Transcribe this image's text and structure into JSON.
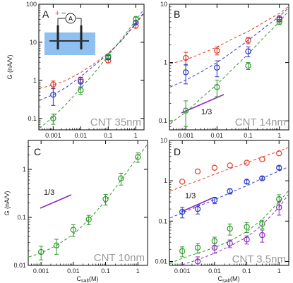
{
  "colors": {
    "red": "#e23a2a",
    "blue": "#2a37c8",
    "green": "#2e9a2a",
    "purple": "#8a32b8",
    "slope_line": "#8a2bbf",
    "schematic_water": "#8fc0f0"
  },
  "chart_data": [
    {
      "type": "scatter",
      "panel_label": "A",
      "annotation": "CNT 35nm",
      "ylabel": "G (nA/V)",
      "xlabel": "",
      "x_scale": "log",
      "y_scale": "log",
      "xlim": [
        0.0003,
        2
      ],
      "ylim": [
        0.05,
        100
      ],
      "yticks": [
        "0.1",
        "1",
        "10",
        "100"
      ],
      "xticks": [
        "0.001",
        "0.01",
        "0.1",
        "1"
      ],
      "series": [
        {
          "color": "red",
          "marker": "circle",
          "x": [
            0.001,
            0.01,
            0.1,
            1
          ],
          "y": [
            0.78,
            1.02,
            3.3,
            27
          ],
          "err": [
            0.18,
            0.2,
            0.4,
            3
          ],
          "fit_x": [
            0.0003,
            0.001,
            0.003,
            0.01,
            0.03,
            0.1,
            0.3,
            1,
            2
          ],
          "fit_y": [
            0.62,
            0.75,
            1.0,
            1.6,
            2.7,
            5.2,
            11,
            30,
            55
          ]
        },
        {
          "color": "blue",
          "marker": "circle",
          "x": [
            0.001,
            0.01,
            0.1,
            1
          ],
          "y": [
            0.42,
            0.92,
            4.0,
            33
          ],
          "err": [
            0.2,
            0.25,
            0.5,
            3
          ],
          "fit_x": [
            0.0003,
            0.001,
            0.003,
            0.01,
            0.03,
            0.1,
            0.3,
            1,
            2
          ],
          "fit_y": [
            0.3,
            0.42,
            0.66,
            1.25,
            2.4,
            5.0,
            11,
            32,
            58
          ]
        },
        {
          "color": "green",
          "marker": "circle",
          "x": [
            0.001,
            0.01,
            0.1,
            1
          ],
          "y": [
            0.1,
            0.55,
            4.3,
            41
          ],
          "err": [
            0.03,
            0.12,
            0.5,
            4
          ],
          "fit_x": [
            0.0003,
            0.001,
            0.003,
            0.01,
            0.03,
            0.1,
            0.3,
            1,
            2
          ],
          "fit_y": [
            0.055,
            0.11,
            0.24,
            0.62,
            1.5,
            4.5,
            12,
            38,
            70
          ]
        }
      ]
    },
    {
      "type": "scatter",
      "panel_label": "B",
      "annotation": "CNT 14nm",
      "slope_label": "1/3",
      "xlabel": "",
      "ylabel": "",
      "x_scale": "log",
      "y_scale": "log",
      "xlim": [
        0.0003,
        2
      ],
      "ylim": [
        0.07,
        10
      ],
      "yticks": [
        "0.1",
        "1",
        "10"
      ],
      "xticks": [
        "0.001",
        "0.01",
        "0.1",
        "1"
      ],
      "series": [
        {
          "color": "red",
          "marker": "circle",
          "x": [
            0.001,
            0.01,
            0.1,
            1
          ],
          "y": [
            1.2,
            1.6,
            2.4,
            5.8
          ],
          "err": [
            0.3,
            0.25,
            0.3,
            0.5
          ],
          "fit_x": [
            0.0003,
            0.001,
            0.003,
            0.01,
            0.03,
            0.1,
            0.3,
            1,
            2
          ],
          "fit_y": [
            0.95,
            1.12,
            1.4,
            1.85,
            2.5,
            3.4,
            4.8,
            7.0,
            9.0
          ]
        },
        {
          "color": "blue",
          "marker": "circle",
          "x": [
            0.001,
            0.01,
            0.1,
            1
          ],
          "y": [
            0.68,
            0.82,
            1.55,
            5.5
          ],
          "err": [
            0.25,
            0.25,
            0.3,
            0.5
          ],
          "fit_x": [
            0.0003,
            0.001,
            0.003,
            0.01,
            0.03,
            0.1,
            0.3,
            1,
            2
          ],
          "fit_y": [
            0.38,
            0.5,
            0.68,
            1.0,
            1.5,
            2.4,
            3.8,
            6.2,
            8.5
          ]
        },
        {
          "color": "green",
          "marker": "circle",
          "x": [
            0.001,
            0.01,
            0.1,
            1
          ],
          "y": [
            0.15,
            0.38,
            0.88,
            5.0
          ],
          "err": [
            0.07,
            0.12,
            0.12,
            0.5
          ],
          "fit_x": [
            0.0003,
            0.001,
            0.003,
            0.01,
            0.03,
            0.1,
            0.3,
            1,
            2
          ],
          "fit_y": [
            0.09,
            0.14,
            0.24,
            0.42,
            0.75,
            1.4,
            2.6,
            5.0,
            7.5
          ]
        }
      ]
    },
    {
      "type": "scatter",
      "panel_label": "C",
      "annotation": "CNT 10nm",
      "slope_label": "1/3",
      "ylabel": "G (nA/V)",
      "xlabel": "C_salt(M)",
      "x_scale": "log",
      "y_scale": "log",
      "xlim": [
        0.0004,
        2
      ],
      "ylim": [
        0.01,
        4
      ],
      "yticks": [
        "0.01",
        "0.1",
        "1"
      ],
      "xticks": [
        "0.001",
        "0.01",
        "0.1",
        "1"
      ],
      "series": [
        {
          "color": "green",
          "marker": "circle",
          "x": [
            0.001,
            0.003,
            0.01,
            0.03,
            0.1,
            0.3,
            1
          ],
          "y": [
            0.019,
            0.026,
            0.055,
            0.09,
            0.24,
            0.65,
            1.8
          ],
          "err": [
            0.006,
            0.009,
            0.015,
            0.02,
            0.06,
            0.18,
            0.4
          ],
          "fit_x": [
            0.0004,
            0.001,
            0.003,
            0.01,
            0.03,
            0.1,
            0.3,
            1,
            2
          ],
          "fit_y": [
            0.015,
            0.018,
            0.026,
            0.044,
            0.09,
            0.22,
            0.6,
            1.8,
            3.2
          ]
        }
      ]
    },
    {
      "type": "scatter",
      "panel_label": "D",
      "annotation": "CNT 3.5nm",
      "slope_label": "1/3",
      "xlabel": "C_salt(M)",
      "ylabel": "",
      "x_scale": "log",
      "y_scale": "log",
      "xlim": [
        0.0004,
        2
      ],
      "ylim": [
        0.008,
        10
      ],
      "yticks": [
        "0.01",
        "0.1",
        "1",
        "10"
      ],
      "xticks": [
        "0.001",
        "0.01",
        "0.1",
        "1"
      ],
      "series": [
        {
          "color": "red",
          "marker": "circle",
          "x": [
            0.001,
            0.003,
            0.01,
            0.03,
            0.1,
            0.3,
            1
          ],
          "y": [
            0.95,
            1.7,
            2.1,
            2.4,
            2.8,
            3.4,
            4.8
          ],
          "err": [
            0,
            0,
            0,
            0,
            0,
            0,
            0
          ],
          "fit_x": [
            0.0004,
            0.001,
            0.003,
            0.01,
            0.03,
            0.1,
            0.3,
            1,
            2
          ],
          "fit_y": [
            0.55,
            0.72,
            1.0,
            1.45,
            2.0,
            2.8,
            3.9,
            5.4,
            6.6
          ]
        },
        {
          "color": "blue",
          "marker": "circle",
          "x": [
            0.001,
            0.003,
            0.01,
            0.03,
            0.1,
            0.3,
            1
          ],
          "y": [
            0.17,
            0.2,
            0.33,
            0.55,
            0.95,
            1.15,
            2.1
          ],
          "err": [
            0.05,
            0.05,
            0.06,
            0.08,
            0.1,
            0.1,
            0.2
          ],
          "fit_x": [
            0.0004,
            0.001,
            0.003,
            0.01,
            0.03,
            0.1,
            0.3,
            1,
            2
          ],
          "fit_y": [
            0.12,
            0.16,
            0.23,
            0.34,
            0.5,
            0.76,
            1.15,
            1.75,
            2.2
          ]
        },
        {
          "color": "green",
          "marker": "circle",
          "x": [
            0.001,
            0.003,
            0.01,
            0.03,
            0.1,
            0.3,
            1
          ],
          "y": [
            0.018,
            0.022,
            0.032,
            0.065,
            0.072,
            0.085,
            0.35
          ],
          "err": [
            0.005,
            0.006,
            0.008,
            0.02,
            0.02,
            0.02,
            0.1
          ],
          "fit_x": [
            0.0004,
            0.001,
            0.003,
            0.01,
            0.03,
            0.1,
            0.3,
            1,
            2
          ],
          "fit_y": [
            0.009,
            0.012,
            0.016,
            0.022,
            0.032,
            0.055,
            0.11,
            0.3,
            0.55
          ]
        },
        {
          "color": "purple",
          "marker": "circle",
          "x": [
            0.003,
            0.01,
            0.03,
            0.1,
            0.3,
            1
          ],
          "y": [
            0.01,
            0.022,
            0.028,
            0.035,
            0.045,
            0.22
          ],
          "err": [
            0.003,
            0.006,
            0.006,
            0.008,
            0.015,
            0.08
          ],
          "fit_x": [
            0.001,
            0.003,
            0.01,
            0.03,
            0.1,
            0.3,
            1,
            2
          ],
          "fit_y": [
            0.008,
            0.011,
            0.016,
            0.024,
            0.04,
            0.08,
            0.22,
            0.45
          ]
        }
      ]
    }
  ]
}
